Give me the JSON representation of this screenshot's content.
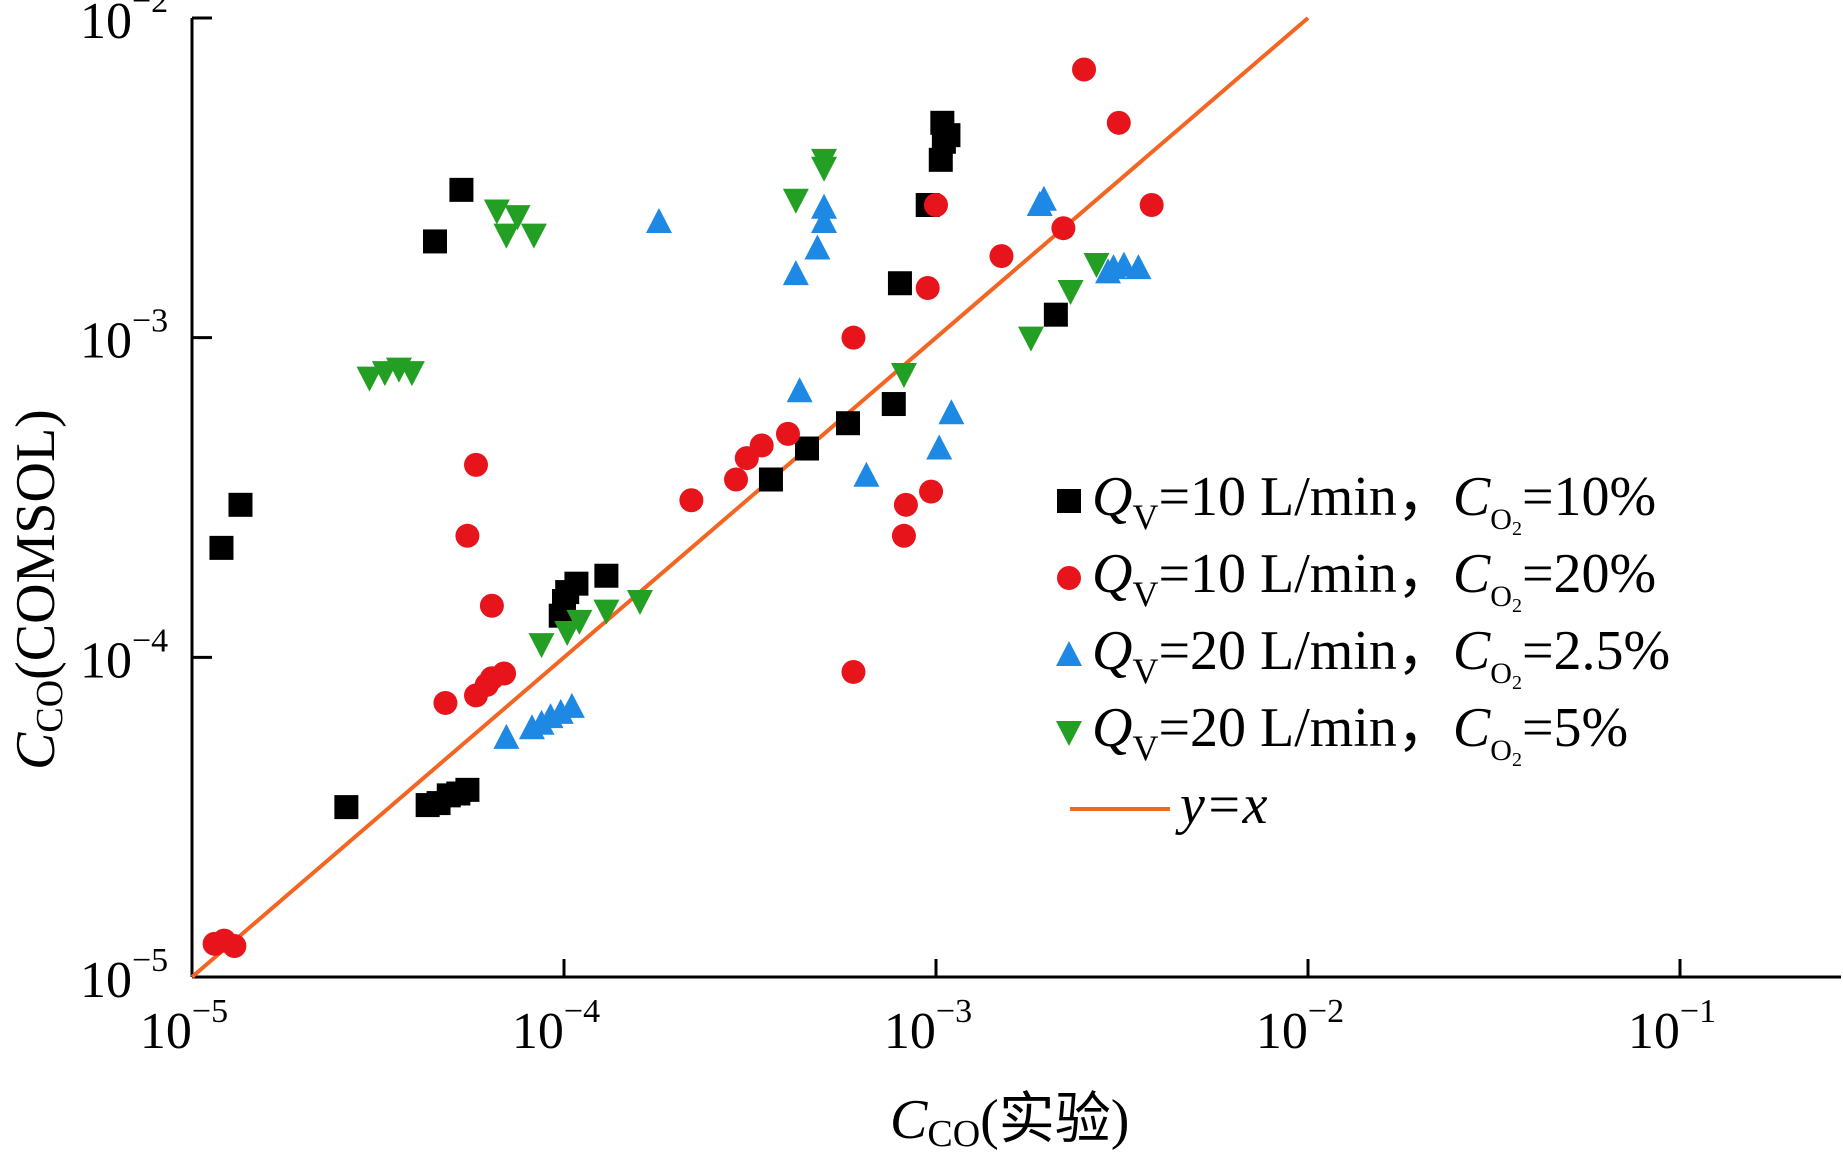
{
  "chart_data": {
    "type": "scatter",
    "title": "",
    "x_scale": "log",
    "y_scale": "log",
    "xlim": [
      1e-05,
      0.25
    ],
    "ylim": [
      1e-05,
      0.01
    ],
    "grid": false,
    "legend_position": "right",
    "xlabel": {
      "main": "C",
      "sub": "CO",
      "suffix": "(实验)"
    },
    "ylabel": {
      "main": "C",
      "sub": "CO",
      "suffix": "(COMSOL)"
    },
    "x_ticks": [
      {
        "value": 1e-05,
        "base": "10",
        "exp": "−5"
      },
      {
        "value": 0.0001,
        "base": "10",
        "exp": "−4"
      },
      {
        "value": 0.001,
        "base": "10",
        "exp": "−3"
      },
      {
        "value": 0.01,
        "base": "10",
        "exp": "−2"
      },
      {
        "value": 0.1,
        "base": "10",
        "exp": "−1"
      }
    ],
    "y_ticks": [
      {
        "value": 1e-05,
        "base": "10",
        "exp": "−5"
      },
      {
        "value": 0.0001,
        "base": "10",
        "exp": "−4"
      },
      {
        "value": 0.001,
        "base": "10",
        "exp": "−3"
      },
      {
        "value": 0.01,
        "base": "10",
        "exp": "−2"
      }
    ],
    "series": [
      {
        "label": {
          "q": "Q",
          "qsub": "V",
          "mid": "=10 L/min，",
          "c": "C",
          "csub": "O",
          "csub2": "2",
          "tail": "=10%"
        },
        "marker": "square",
        "color": "#000000",
        "points": [
          [
            1.2e-05,
            0.00022
          ],
          [
            1.35e-05,
            0.0003
          ],
          [
            2.6e-05,
            3.4e-05
          ],
          [
            4.3e-05,
            3.45e-05
          ],
          [
            4.6e-05,
            3.5e-05
          ],
          [
            4.9e-05,
            3.7e-05
          ],
          [
            5.2e-05,
            3.75e-05
          ],
          [
            5.5e-05,
            3.85e-05
          ],
          [
            4.5e-05,
            0.002
          ],
          [
            5.3e-05,
            0.0029
          ],
          [
            9.8e-05,
            0.000135
          ],
          [
            0.0001,
            0.00015
          ],
          [
            0.000102,
            0.00016
          ],
          [
            0.000108,
            0.00017
          ],
          [
            0.00013,
            0.00018
          ],
          [
            0.00036,
            0.00036
          ],
          [
            0.00045,
            0.00045
          ],
          [
            0.00058,
            0.00054
          ],
          [
            0.00077,
            0.00062
          ],
          [
            0.0008,
            0.00148
          ],
          [
            0.00095,
            0.0026
          ],
          [
            0.00103,
            0.0036
          ],
          [
            0.00105,
            0.0041
          ],
          [
            0.00108,
            0.0043
          ],
          [
            0.00104,
            0.0047
          ],
          [
            0.0021,
            0.00118
          ]
        ]
      },
      {
        "label": {
          "q": "Q",
          "qsub": "V",
          "mid": "=10 L/min，",
          "c": "C",
          "csub": "O",
          "csub2": "2",
          "tail": "=20%"
        },
        "marker": "circle",
        "color": "#e8141c",
        "points": [
          [
            1.15e-05,
            1.27e-05
          ],
          [
            1.22e-05,
            1.3e-05
          ],
          [
            1.3e-05,
            1.25e-05
          ],
          [
            4.8e-05,
            7.2e-05
          ],
          [
            5.5e-05,
            0.00024
          ],
          [
            5.8e-05,
            0.0004
          ],
          [
            5.8e-05,
            7.6e-05
          ],
          [
            6.2e-05,
            8.2e-05
          ],
          [
            6.4e-05,
            8.6e-05
          ],
          [
            6.4e-05,
            0.000145
          ],
          [
            6.9e-05,
            8.9e-05
          ],
          [
            0.00022,
            0.00031
          ],
          [
            0.00029,
            0.00036
          ],
          [
            0.00031,
            0.00042
          ],
          [
            0.00034,
            0.00046
          ],
          [
            0.0004,
            0.0005
          ],
          [
            0.0006,
            0.001
          ],
          [
            0.0006,
            9e-05
          ],
          [
            0.00082,
            0.00024
          ],
          [
            0.00083,
            0.0003
          ],
          [
            0.00097,
            0.00033
          ],
          [
            0.00095,
            0.00143
          ],
          [
            0.001,
            0.0026
          ],
          [
            0.0015,
            0.0018
          ],
          [
            0.0022,
            0.0022
          ],
          [
            0.0025,
            0.0069
          ],
          [
            0.0031,
            0.0047
          ],
          [
            0.0038,
            0.0026
          ]
        ]
      },
      {
        "label": {
          "q": "Q",
          "qsub": "V",
          "mid": "=20 L/min，",
          "c": "C",
          "csub": "O",
          "csub2": "2",
          "tail": "=2.5%"
        },
        "marker": "triangle-up",
        "color": "#1e88e5",
        "points": [
          [
            7e-05,
            5.6e-05
          ],
          [
            8.2e-05,
            6e-05
          ],
          [
            8.7e-05,
            6.2e-05
          ],
          [
            9.2e-05,
            6.5e-05
          ],
          [
            9.8e-05,
            6.7e-05
          ],
          [
            0.000105,
            7e-05
          ],
          [
            0.00018,
            0.0023
          ],
          [
            0.00042,
            0.00158
          ],
          [
            0.00043,
            0.00068
          ],
          [
            0.00048,
            0.0019
          ],
          [
            0.0005,
            0.0023
          ],
          [
            0.0005,
            0.00255
          ],
          [
            0.00065,
            0.00037
          ],
          [
            0.00102,
            0.00045
          ],
          [
            0.0011,
            0.00058
          ],
          [
            0.0019,
            0.0026
          ],
          [
            0.00195,
            0.0027
          ],
          [
            0.0029,
            0.0016
          ],
          [
            0.003,
            0.00165
          ],
          [
            0.0032,
            0.00168
          ],
          [
            0.0035,
            0.00165
          ]
        ]
      },
      {
        "label": {
          "q": "Q",
          "qsub": "V",
          "mid": "=20 L/min，",
          "c": "C",
          "csub": "O",
          "csub2": "2",
          "tail": "=5%"
        },
        "marker": "triangle-down",
        "color": "#23a023",
        "points": [
          [
            3e-05,
            0.00075
          ],
          [
            3.3e-05,
            0.00078
          ],
          [
            3.6e-05,
            0.0008
          ],
          [
            3.9e-05,
            0.00078
          ],
          [
            6.6e-05,
            0.0025
          ],
          [
            7e-05,
            0.0021
          ],
          [
            7.5e-05,
            0.0024
          ],
          [
            8.3e-05,
            0.0021
          ],
          [
            8.7e-05,
            0.00011
          ],
          [
            0.000102,
            0.00012
          ],
          [
            0.00011,
            0.00013
          ],
          [
            0.00013,
            0.00014
          ],
          [
            0.00016,
            0.00015
          ],
          [
            0.00042,
            0.0027
          ],
          [
            0.0005,
            0.0034
          ],
          [
            0.0005,
            0.0036
          ],
          [
            0.00082,
            0.00077
          ],
          [
            0.0018,
            0.001
          ],
          [
            0.0023,
            0.0014
          ],
          [
            0.0027,
            0.0017
          ]
        ]
      }
    ],
    "reference_line": {
      "label": "y=x",
      "color": "#f26522",
      "from": [
        1e-05,
        1e-05
      ],
      "to": [
        0.01,
        0.01
      ]
    }
  }
}
